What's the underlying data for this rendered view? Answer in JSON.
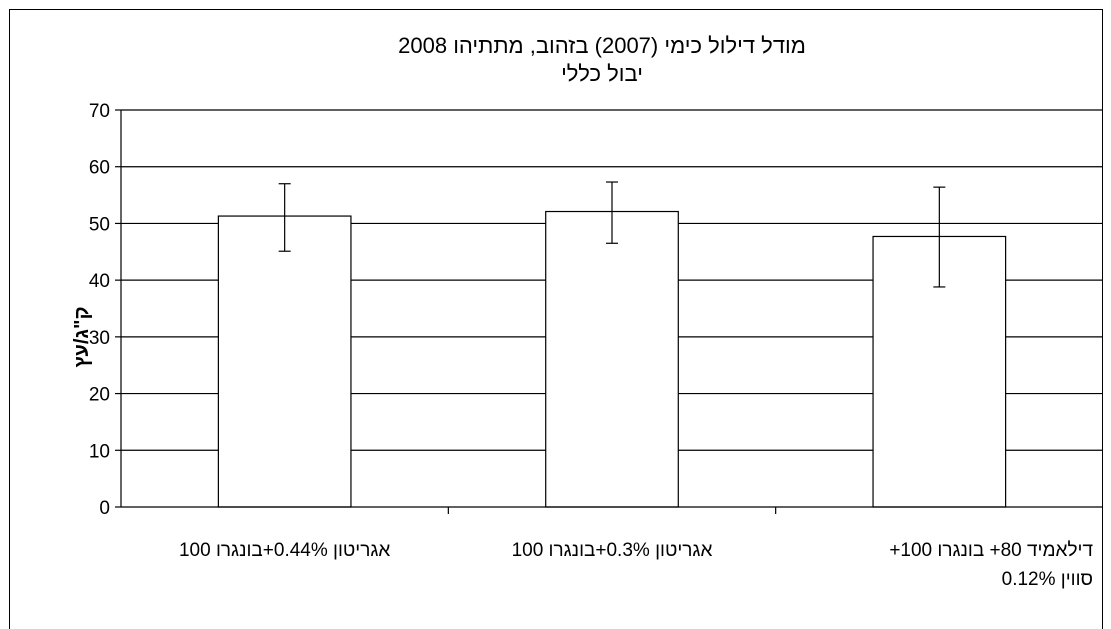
{
  "chart_data": {
    "type": "bar",
    "title": "מודל דילול כימי (2007) בזהוב, מתתיהו 2008",
    "subtitle": "יבול כללי",
    "ylabel": "ק\"ג/עץ",
    "xlabel": "",
    "ylim": [
      0,
      70
    ],
    "yticks": [
      0,
      10,
      20,
      30,
      40,
      50,
      60,
      70
    ],
    "grid": true,
    "categories": [
      [
        "אגריטון 0.44%+בונגרו 100"
      ],
      [
        "אגריטון 0.3%+בונגרו 100"
      ],
      [
        "דילאמיד 80+ בונגרו 100+",
        "סווין 0.12%"
      ]
    ],
    "values": [
      51.3,
      52.1,
      47.7
    ],
    "error_low": [
      45.1,
      46.5,
      38.8
    ],
    "error_high": [
      57.0,
      57.3,
      56.4
    ]
  }
}
